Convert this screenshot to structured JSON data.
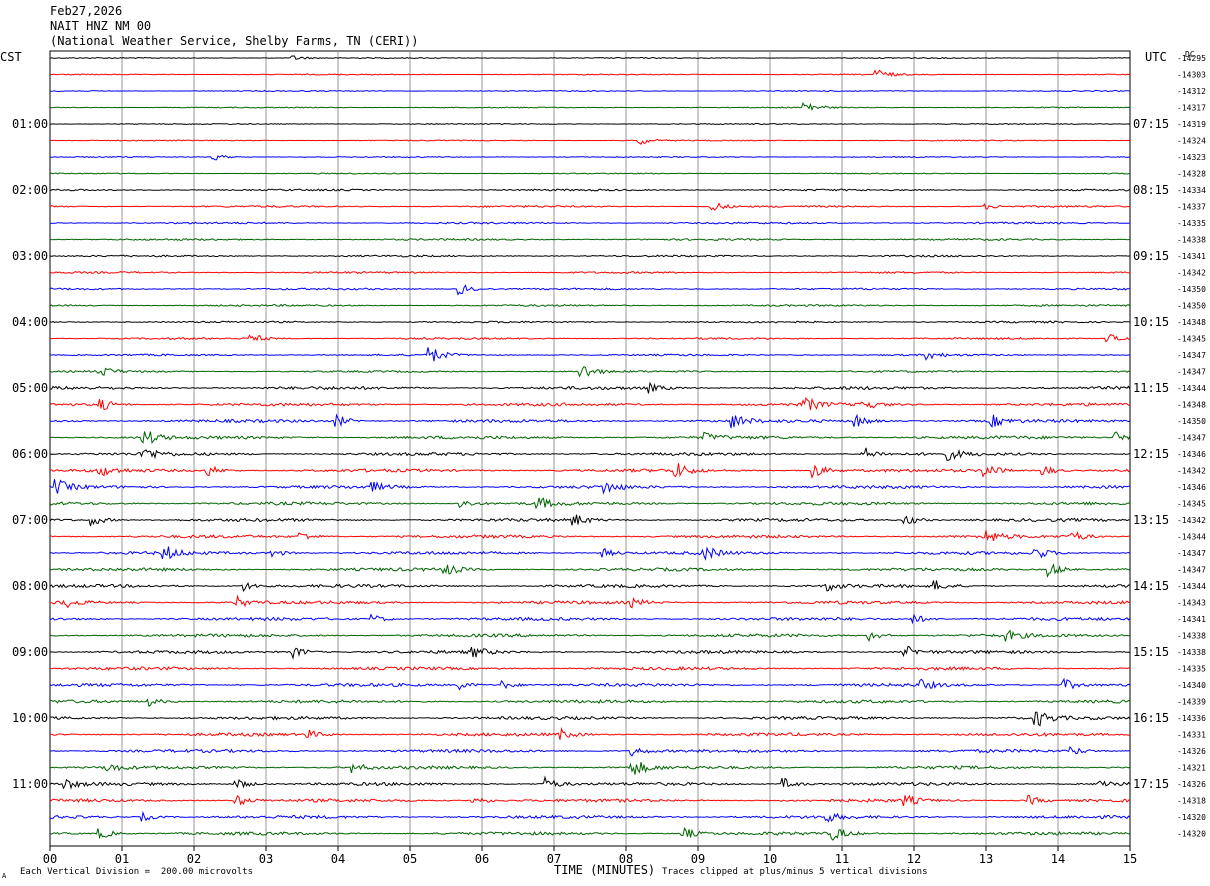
{
  "header": {
    "date": "Feb27,2026",
    "station": "NAIT HNZ NM 00",
    "network": "(National Weather Service, Shelby Farms, TN (CERI))"
  },
  "left_axis_title": "CST",
  "right_axis_title": "UTC",
  "dc_label": "DC",
  "footer": {
    "scale_note": "Each Vertical Division =  200.00 microvolts",
    "clip_note": "Traces clipped at plus/minus 5 vertical divisions",
    "corner_mark": "A"
  },
  "colors": {
    "trace_cycle": [
      "#000000",
      "#ff0000",
      "#0000ff",
      "#006400"
    ],
    "grid": "#808080",
    "background": "#ffffff"
  },
  "chart_data": {
    "type": "line",
    "subtype": "helicorder",
    "xlabel": "TIME (MINUTES)",
    "xlim": [
      0,
      15
    ],
    "x_ticks": [
      "00",
      "01",
      "02",
      "03",
      "04",
      "05",
      "06",
      "07",
      "08",
      "09",
      "10",
      "11",
      "12",
      "13",
      "14",
      "15"
    ],
    "rows_per_hour": 4,
    "row_minutes": 15,
    "left_time_labels": [
      "01:00",
      "02:00",
      "03:00",
      "04:00",
      "05:00",
      "06:00",
      "07:00",
      "08:00",
      "09:00",
      "10:00",
      "11:00"
    ],
    "right_time_labels": [
      "07:15",
      "08:15",
      "09:15",
      "10:15",
      "11:15",
      "12:15",
      "13:15",
      "14:15",
      "15:15",
      "16:15",
      "17:15"
    ],
    "dc_offsets": [
      "-14295",
      "-14303",
      "-14312",
      "-14317",
      "-14319",
      "-14324",
      "-14323",
      "-14328",
      "-14334",
      "-14337",
      "-14335",
      "-14338",
      "-14341",
      "-14342",
      "-14350",
      "-14350",
      "-14348",
      "-14345",
      "-14347",
      "-14347",
      "-14344",
      "-14348",
      "-14350",
      "-14347",
      "-14346",
      "-14342",
      "-14346",
      "-14345",
      "-14342",
      "-14344",
      "-14347",
      "-14347",
      "-14344",
      "-14343",
      "-14341",
      "-14338",
      "-14338",
      "-14335",
      "-14340",
      "-14339",
      "-14336",
      "-14331",
      "-14326",
      "-14321",
      "-14326",
      "-14318",
      "-14320",
      "-14320"
    ],
    "events": [
      {
        "row": 0,
        "minute": 3.4,
        "amp": 0.6
      },
      {
        "row": 1,
        "minute": 11.5,
        "amp": 1.4
      },
      {
        "row": 3,
        "minute": 10.5,
        "amp": 1.6
      },
      {
        "row": 5,
        "minute": 8.2,
        "amp": 1.0
      },
      {
        "row": 6,
        "minute": 2.3,
        "amp": 0.8
      },
      {
        "row": 9,
        "minute": 9.2,
        "amp": 1.4
      },
      {
        "row": 9,
        "minute": 13.0,
        "amp": 0.6
      },
      {
        "row": 14,
        "minute": 5.7,
        "amp": 1.4
      },
      {
        "row": 17,
        "minute": 2.8,
        "amp": 1.2
      },
      {
        "row": 17,
        "minute": 14.7,
        "amp": 1.2
      },
      {
        "row": 18,
        "minute": 5.3,
        "amp": 2.0
      },
      {
        "row": 18,
        "minute": 12.2,
        "amp": 1.0
      },
      {
        "row": 19,
        "minute": 0.7,
        "amp": 1.4
      },
      {
        "row": 19,
        "minute": 7.4,
        "amp": 2.0
      },
      {
        "row": 20,
        "minute": 8.3,
        "amp": 1.2
      },
      {
        "row": 21,
        "minute": 0.7,
        "amp": 1.6
      },
      {
        "row": 21,
        "minute": 10.5,
        "amp": 1.8
      },
      {
        "row": 21,
        "minute": 11.3,
        "amp": 1.4
      },
      {
        "row": 22,
        "minute": 4.0,
        "amp": 1.4
      },
      {
        "row": 22,
        "minute": 9.5,
        "amp": 1.8
      },
      {
        "row": 22,
        "minute": 11.2,
        "amp": 1.6
      },
      {
        "row": 22,
        "minute": 13.1,
        "amp": 1.4
      },
      {
        "row": 23,
        "minute": 1.3,
        "amp": 2.5
      },
      {
        "row": 23,
        "minute": 9.1,
        "amp": 1.0
      },
      {
        "row": 23,
        "minute": 14.8,
        "amp": 1.4
      },
      {
        "row": 24,
        "minute": 1.3,
        "amp": 2.0
      },
      {
        "row": 24,
        "minute": 11.3,
        "amp": 1.8
      },
      {
        "row": 24,
        "minute": 12.5,
        "amp": 1.2
      },
      {
        "row": 25,
        "minute": 0.7,
        "amp": 1.4
      },
      {
        "row": 25,
        "minute": 2.2,
        "amp": 1.4
      },
      {
        "row": 25,
        "minute": 8.7,
        "amp": 2.0
      },
      {
        "row": 25,
        "minute": 10.6,
        "amp": 2.0
      },
      {
        "row": 25,
        "minute": 13.0,
        "amp": 2.0
      },
      {
        "row": 25,
        "minute": 13.8,
        "amp": 1.4
      },
      {
        "row": 26,
        "minute": 0.1,
        "amp": 1.8
      },
      {
        "row": 26,
        "minute": 4.5,
        "amp": 1.0
      },
      {
        "row": 26,
        "minute": 7.7,
        "amp": 1.6
      },
      {
        "row": 27,
        "minute": 5.7,
        "amp": 1.2
      },
      {
        "row": 27,
        "minute": 6.8,
        "amp": 1.4
      },
      {
        "row": 28,
        "minute": 0.6,
        "amp": 1.4
      },
      {
        "row": 28,
        "minute": 7.3,
        "amp": 1.4
      },
      {
        "row": 28,
        "minute": 11.9,
        "amp": 1.4
      },
      {
        "row": 29,
        "minute": 3.5,
        "amp": 1.0
      },
      {
        "row": 29,
        "minute": 13.0,
        "amp": 1.8
      },
      {
        "row": 29,
        "minute": 14.2,
        "amp": 1.4
      },
      {
        "row": 30,
        "minute": 1.6,
        "amp": 1.8
      },
      {
        "row": 30,
        "minute": 3.1,
        "amp": 1.0
      },
      {
        "row": 30,
        "minute": 7.7,
        "amp": 1.0
      },
      {
        "row": 30,
        "minute": 9.1,
        "amp": 1.6
      },
      {
        "row": 30,
        "minute": 13.7,
        "amp": 1.6
      },
      {
        "row": 31,
        "minute": 5.5,
        "amp": 1.4
      },
      {
        "row": 31,
        "minute": 13.9,
        "amp": 1.8
      },
      {
        "row": 32,
        "minute": 2.7,
        "amp": 1.2
      },
      {
        "row": 32,
        "minute": 10.8,
        "amp": 1.2
      },
      {
        "row": 32,
        "minute": 12.3,
        "amp": 1.2
      },
      {
        "row": 33,
        "minute": 0.2,
        "amp": 1.2
      },
      {
        "row": 33,
        "minute": 2.6,
        "amp": 1.4
      },
      {
        "row": 33,
        "minute": 8.1,
        "amp": 1.0
      },
      {
        "row": 34,
        "minute": 4.5,
        "amp": 1.0
      },
      {
        "row": 34,
        "minute": 12.0,
        "amp": 1.2
      },
      {
        "row": 35,
        "minute": 11.4,
        "amp": 1.2
      },
      {
        "row": 35,
        "minute": 13.3,
        "amp": 1.2
      },
      {
        "row": 36,
        "minute": 3.4,
        "amp": 1.4
      },
      {
        "row": 36,
        "minute": 5.9,
        "amp": 1.2
      },
      {
        "row": 36,
        "minute": 11.9,
        "amp": 1.4
      },
      {
        "row": 38,
        "minute": 5.7,
        "amp": 1.0
      },
      {
        "row": 38,
        "minute": 6.3,
        "amp": 1.0
      },
      {
        "row": 38,
        "minute": 12.1,
        "amp": 1.2
      },
      {
        "row": 38,
        "minute": 14.1,
        "amp": 1.4
      },
      {
        "row": 39,
        "minute": 1.4,
        "amp": 1.0
      },
      {
        "row": 40,
        "minute": 13.7,
        "amp": 2.5
      },
      {
        "row": 41,
        "minute": 3.6,
        "amp": 1.0
      },
      {
        "row": 41,
        "minute": 7.1,
        "amp": 1.2
      },
      {
        "row": 42,
        "minute": 8.1,
        "amp": 1.2
      },
      {
        "row": 42,
        "minute": 14.2,
        "amp": 1.0
      },
      {
        "row": 43,
        "minute": 0.8,
        "amp": 1.2
      },
      {
        "row": 43,
        "minute": 8.1,
        "amp": 2.4
      },
      {
        "row": 43,
        "minute": 4.2,
        "amp": 1.2
      },
      {
        "row": 44,
        "minute": 0.2,
        "amp": 1.4
      },
      {
        "row": 44,
        "minute": 2.6,
        "amp": 1.4
      },
      {
        "row": 44,
        "minute": 6.9,
        "amp": 1.6
      },
      {
        "row": 44,
        "minute": 10.2,
        "amp": 1.4
      },
      {
        "row": 44,
        "minute": 14.6,
        "amp": 1.4
      },
      {
        "row": 45,
        "minute": 2.6,
        "amp": 1.4
      },
      {
        "row": 45,
        "minute": 5.9,
        "amp": 1.2
      },
      {
        "row": 45,
        "minute": 11.9,
        "amp": 1.2
      },
      {
        "row": 45,
        "minute": 13.6,
        "amp": 1.2
      },
      {
        "row": 46,
        "minute": 1.3,
        "amp": 1.0
      },
      {
        "row": 46,
        "minute": 10.8,
        "amp": 1.0
      },
      {
        "row": 47,
        "minute": 0.7,
        "amp": 1.4
      },
      {
        "row": 47,
        "minute": 8.8,
        "amp": 1.6
      },
      {
        "row": 47,
        "minute": 10.9,
        "amp": 1.6
      }
    ]
  }
}
